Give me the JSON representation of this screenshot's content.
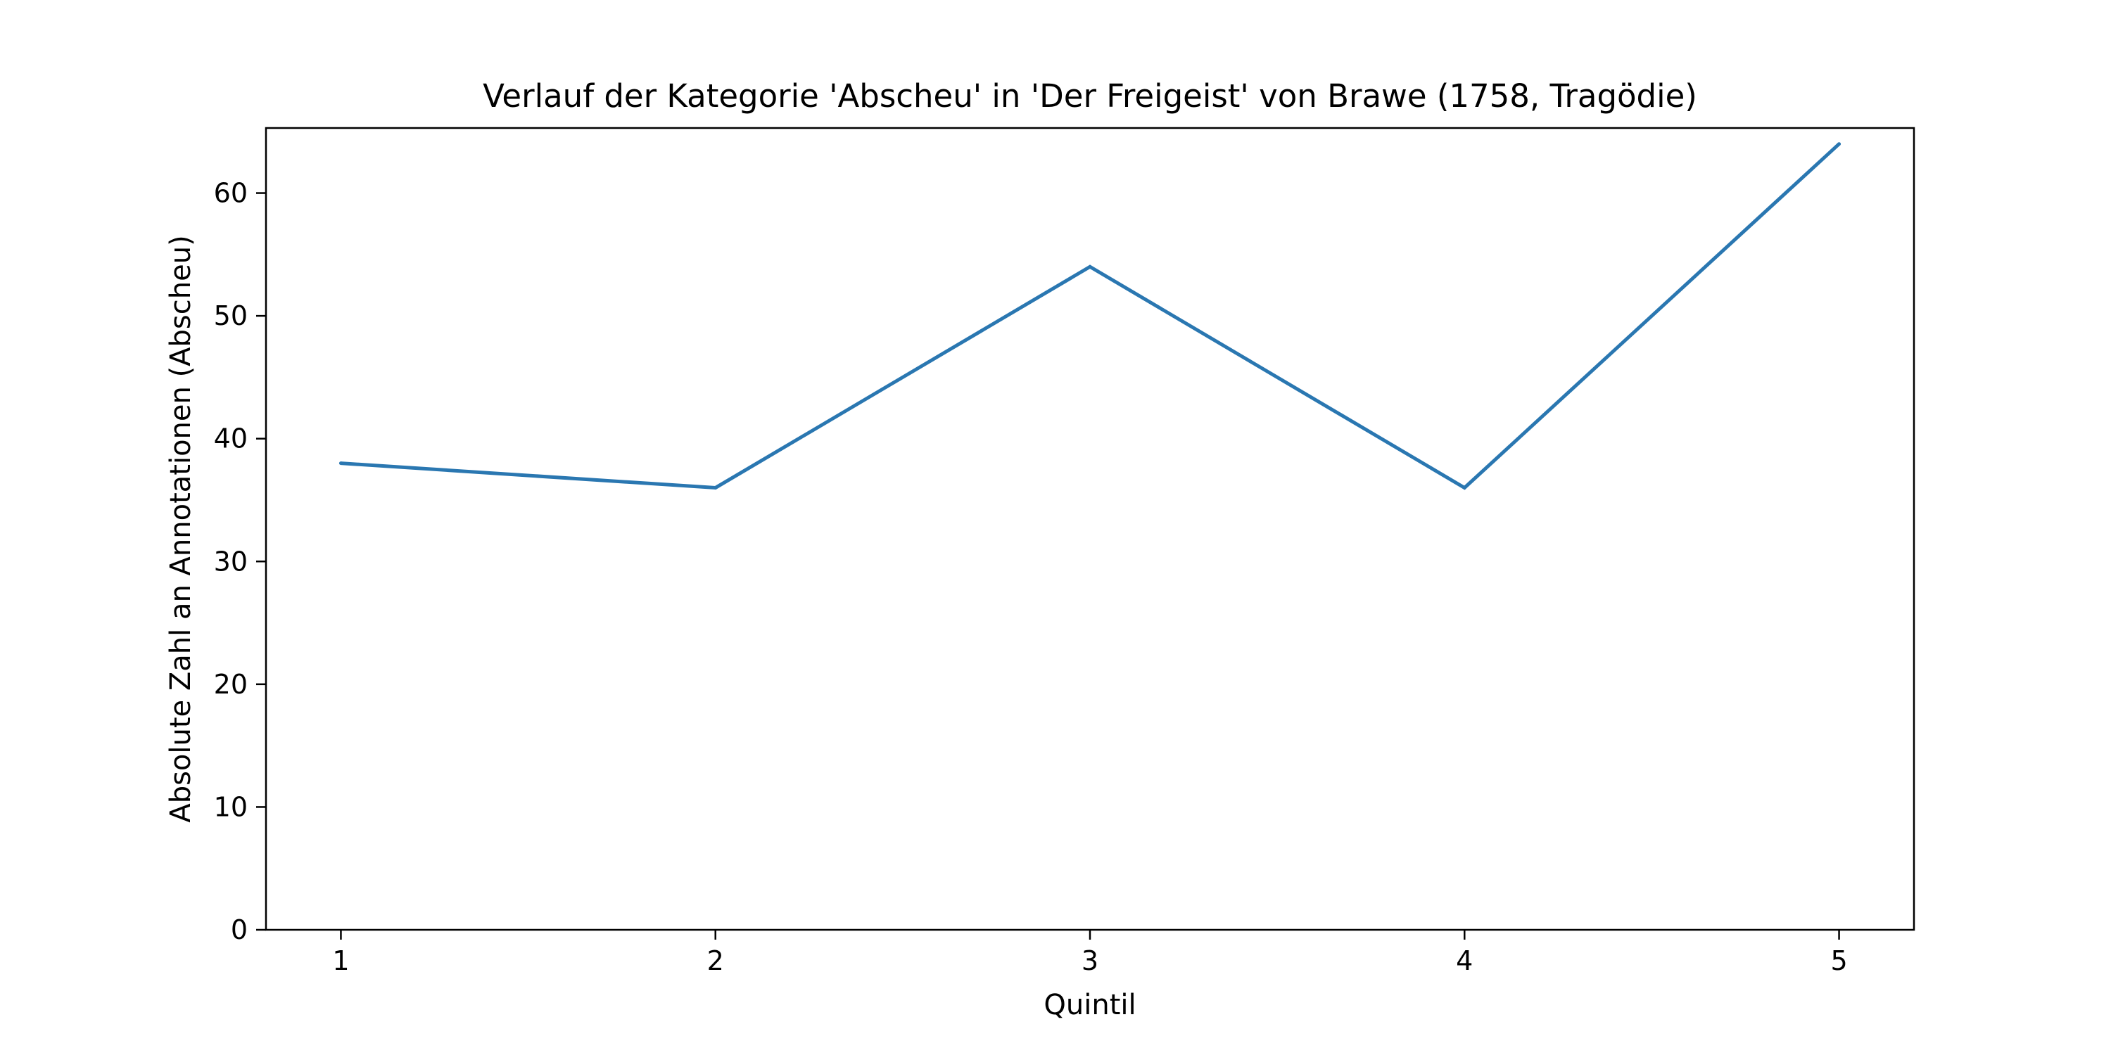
{
  "chart_data": {
    "type": "line",
    "title": "Verlauf der Kategorie 'Abscheu' in 'Der Freigeist' von Brawe (1758, Tragödie)",
    "xlabel": "Quintil",
    "ylabel": "Absolute Zahl an Annotationen (Abscheu)",
    "x": [
      1,
      2,
      3,
      4,
      5
    ],
    "series": [
      {
        "values": [
          38,
          36,
          54,
          36,
          64
        ]
      }
    ],
    "xlim": [
      0.8,
      5.2
    ],
    "ylim": [
      0,
      65.3
    ],
    "xticks": [
      1,
      2,
      3,
      4,
      5
    ],
    "xtick_labels": [
      "1",
      "2",
      "3",
      "4",
      "5"
    ],
    "yticks": [
      0,
      10,
      20,
      30,
      40,
      50,
      60
    ],
    "ytick_labels": [
      "0",
      "10",
      "20",
      "30",
      "40",
      "50",
      "60"
    ],
    "grid": false,
    "legend": "none",
    "line_color": "#2a77b1",
    "axis_color": "#000000",
    "background": "#ffffff"
  }
}
